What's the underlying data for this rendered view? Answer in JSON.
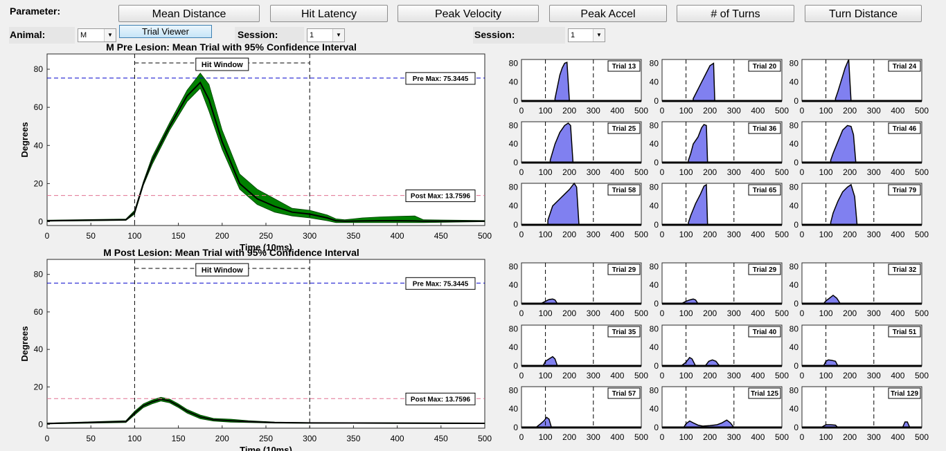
{
  "controls": {
    "parameter_label": "Parameter:",
    "buttons": [
      "Mean Distance",
      "Hit Latency",
      "Peak Velocity",
      "Peak Accel",
      "# of Turns",
      "Turn Distance"
    ],
    "animal_label": "Animal:",
    "animal_value": "M",
    "trial_viewer": "Trial Viewer",
    "session_label": "Session:",
    "session_left_value": "1",
    "session_right_value": "1"
  },
  "colors": {
    "ci_fill": "#008000",
    "mean_line": "#000000",
    "pre_max_line": "#0000cc",
    "post_max_line": "#e07090",
    "trial_fill": "#8080f0"
  },
  "chart_data": [
    {
      "type": "area",
      "title": "M Pre Lesion: Mean Trial with 95% Confidence Interval",
      "xlabel": "Time (10ms)",
      "ylabel": "Degrees",
      "xlim": [
        0,
        500
      ],
      "ylim": [
        -2,
        88
      ],
      "xticks": [
        0,
        50,
        100,
        150,
        200,
        250,
        300,
        350,
        400,
        450,
        500
      ],
      "yticks": [
        0,
        20,
        40,
        60,
        80
      ],
      "hit_window": {
        "label": "Hit Window",
        "x": [
          100,
          300
        ]
      },
      "annotations": [
        {
          "text": "Pre Max: 75.3445",
          "y": 75.3445
        },
        {
          "text": "Post Max: 13.7596",
          "y": 13.7596
        }
      ],
      "mean": {
        "x": [
          0,
          90,
          100,
          110,
          120,
          140,
          160,
          175,
          185,
          200,
          220,
          240,
          260,
          280,
          300,
          320,
          330,
          340,
          360,
          380,
          400,
          420,
          430,
          500
        ],
        "y": [
          0.5,
          1.0,
          5,
          20,
          32,
          50,
          66,
          73,
          64,
          42,
          20,
          12,
          8,
          5,
          4,
          2,
          0.5,
          0.3,
          0.4,
          0.5,
          0.5,
          0.4,
          0.3,
          0.3
        ]
      },
      "ci_upper": [
        0.8,
        1.4,
        6,
        21,
        34,
        52,
        69,
        78,
        72,
        48,
        25,
        17,
        12,
        7,
        6,
        3.5,
        1.5,
        1.0,
        2.0,
        2.5,
        2.8,
        3.0,
        1.0,
        0.6
      ],
      "ci_lower": [
        0.2,
        0.7,
        4,
        19,
        30,
        48,
        63,
        70,
        58,
        38,
        17,
        9,
        5,
        3,
        2,
        0.5,
        -0.5,
        -0.5,
        -0.5,
        -0.5,
        -0.5,
        -0.5,
        -0.5,
        0.0
      ]
    },
    {
      "type": "area",
      "title": "M Post Lesion: Mean Trial with 95% Confidence Interval",
      "xlabel": "Time (10ms)",
      "ylabel": "Degrees",
      "xlim": [
        0,
        500
      ],
      "ylim": [
        -2,
        88
      ],
      "xticks": [
        0,
        50,
        100,
        150,
        200,
        250,
        300,
        350,
        400,
        450,
        500
      ],
      "yticks": [
        0,
        20,
        40,
        60,
        80
      ],
      "hit_window": {
        "label": "Hit Window",
        "x": [
          100,
          300
        ]
      },
      "annotations": [
        {
          "text": "Pre Max: 75.3445",
          "y": 75.3445
        },
        {
          "text": "Post Max: 13.7596",
          "y": 13.7596
        }
      ],
      "mean": {
        "x": [
          0,
          90,
          100,
          110,
          120,
          130,
          140,
          150,
          160,
          175,
          190,
          210,
          230,
          260,
          300,
          500
        ],
        "y": [
          0.5,
          1.5,
          6,
          10,
          12,
          13.5,
          12.5,
          10,
          7,
          4,
          2.5,
          2,
          1.5,
          1,
          0.8,
          0.6
        ]
      },
      "ci_upper": [
        0.7,
        2,
        7,
        11,
        13,
        14.5,
        13.5,
        11,
        8,
        5,
        3.2,
        2.8,
        2,
        1.3,
        1.0,
        0.8
      ],
      "ci_lower": [
        0.3,
        1,
        5,
        9,
        11,
        12.5,
        11.5,
        9,
        6,
        3,
        1.8,
        1.2,
        1,
        0.7,
        0.6,
        0.4
      ]
    },
    {
      "type": "area",
      "group": "pre",
      "xticks": [
        0,
        100,
        200,
        300,
        400,
        500
      ],
      "yticks": [
        0,
        40,
        80
      ],
      "xlim": [
        0,
        500
      ],
      "ylim": [
        0,
        88
      ],
      "hit_window_x": [
        100,
        300
      ],
      "trials": [
        {
          "label": "Trial 13",
          "x": [
            140,
            150,
            160,
            170,
            180,
            190,
            200
          ],
          "y": [
            5,
            30,
            55,
            70,
            80,
            82,
            0
          ]
        },
        {
          "label": "Trial 20",
          "x": [
            130,
            150,
            165,
            180,
            200,
            215,
            220
          ],
          "y": [
            5,
            25,
            40,
            55,
            75,
            80,
            0
          ]
        },
        {
          "label": "Trial 24",
          "x": [
            140,
            150,
            165,
            180,
            195,
            205
          ],
          "y": [
            5,
            20,
            45,
            70,
            88,
            0
          ]
        },
        {
          "label": "Trial 25",
          "x": [
            120,
            140,
            160,
            180,
            195,
            205,
            215
          ],
          "y": [
            5,
            40,
            65,
            80,
            85,
            80,
            0
          ]
        },
        {
          "label": "Trial 36",
          "x": [
            110,
            120,
            130,
            150,
            165,
            175,
            185,
            190
          ],
          "y": [
            5,
            20,
            40,
            55,
            75,
            82,
            80,
            0
          ]
        },
        {
          "label": "Trial 46",
          "x": [
            120,
            130,
            150,
            170,
            190,
            205,
            215,
            225
          ],
          "y": [
            5,
            20,
            45,
            70,
            80,
            78,
            60,
            0
          ]
        },
        {
          "label": "Trial 58",
          "x": [
            110,
            130,
            160,
            180,
            200,
            220,
            230,
            240
          ],
          "y": [
            10,
            40,
            55,
            65,
            75,
            88,
            80,
            0
          ]
        },
        {
          "label": "Trial 65",
          "x": [
            110,
            120,
            140,
            160,
            175,
            185,
            190
          ],
          "y": [
            5,
            20,
            45,
            65,
            82,
            85,
            0
          ]
        },
        {
          "label": "Trial 79",
          "x": [
            120,
            130,
            150,
            170,
            190,
            205,
            220,
            230
          ],
          "y": [
            5,
            25,
            50,
            70,
            80,
            85,
            60,
            0
          ]
        }
      ]
    },
    {
      "type": "area",
      "group": "post",
      "xticks": [
        0,
        100,
        200,
        300,
        400,
        500
      ],
      "yticks": [
        0,
        40,
        80
      ],
      "xlim": [
        0,
        500
      ],
      "ylim": [
        0,
        88
      ],
      "hit_window_x": [
        100,
        300
      ],
      "trials": [
        {
          "label": "Trial 29",
          "x": [
            80,
            100,
            115,
            130,
            140,
            150
          ],
          "y": [
            0,
            5,
            9,
            10,
            8,
            0
          ]
        },
        {
          "label": "Trial 29",
          "x": [
            80,
            100,
            115,
            130,
            140,
            150
          ],
          "y": [
            0,
            5,
            8,
            10,
            8,
            0
          ]
        },
        {
          "label": "Trial 32",
          "x": [
            90,
            100,
            115,
            130,
            145,
            160
          ],
          "y": [
            0,
            6,
            12,
            18,
            12,
            0
          ]
        },
        {
          "label": "Trial 35",
          "x": [
            90,
            100,
            115,
            130,
            140,
            150
          ],
          "y": [
            0,
            10,
            15,
            20,
            15,
            0
          ]
        },
        {
          "label": "Trial 40",
          "x": [
            80,
            100,
            115,
            125,
            140,
            180,
            195,
            210,
            225,
            240
          ],
          "y": [
            0,
            8,
            18,
            15,
            0,
            0,
            10,
            13,
            10,
            0
          ]
        },
        {
          "label": "Trial 51",
          "x": [
            90,
            100,
            110,
            125,
            140,
            150
          ],
          "y": [
            0,
            10,
            13,
            12,
            10,
            0
          ]
        },
        {
          "label": "Trial 57",
          "x": [
            60,
            80,
            95,
            105,
            115,
            125
          ],
          "y": [
            0,
            8,
            15,
            22,
            18,
            0
          ]
        },
        {
          "label": "Trial 125",
          "x": [
            90,
            100,
            115,
            130,
            150,
            170,
            200,
            230,
            250,
            270,
            285,
            300
          ],
          "y": [
            0,
            8,
            14,
            10,
            5,
            3,
            4,
            6,
            10,
            16,
            10,
            0
          ]
        },
        {
          "label": "Trial 129",
          "x": [
            80,
            100,
            120,
            140,
            150,
            420,
            430,
            440,
            450
          ],
          "y": [
            0,
            6,
            6,
            5,
            0,
            0,
            12,
            12,
            0
          ]
        }
      ]
    }
  ]
}
